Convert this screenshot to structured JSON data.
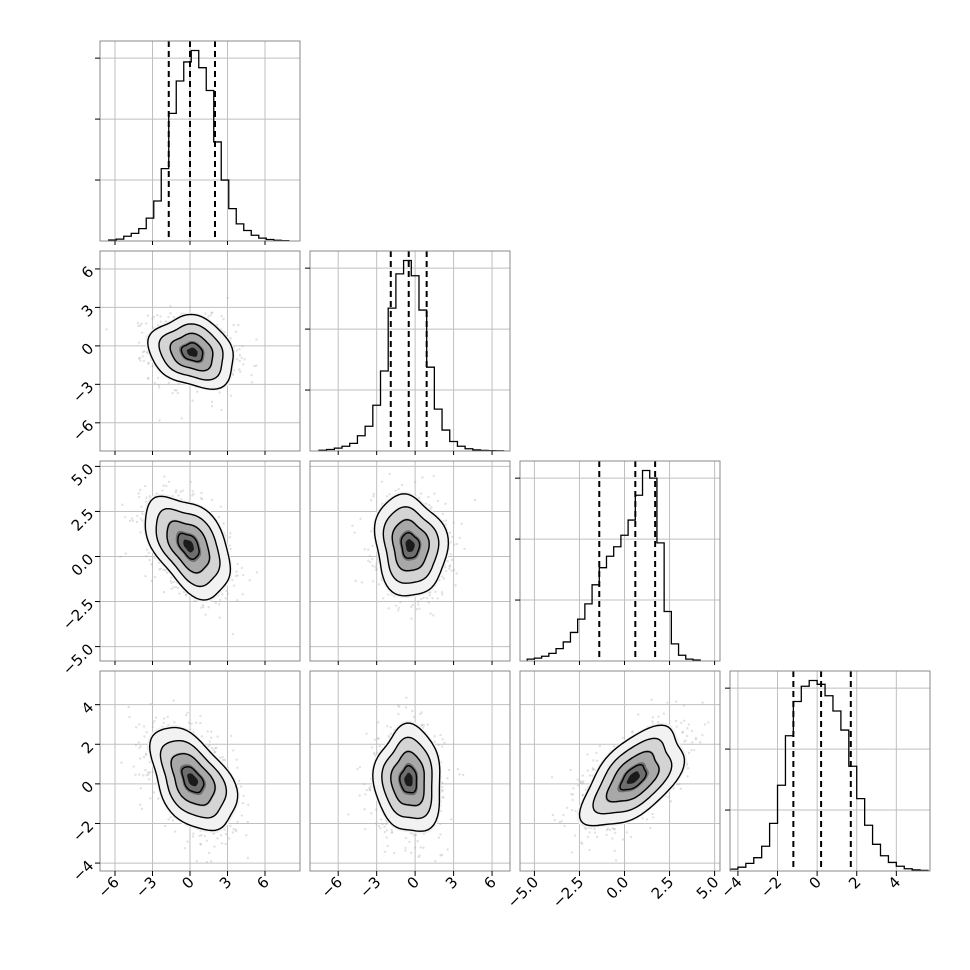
{
  "chart_data": {
    "type": "corner",
    "n_params": 4,
    "grid": true,
    "colors": {
      "frame": "#888888",
      "grid": "#bfbfbf",
      "hist": "#000000",
      "quantile": "#000000",
      "scatter": "#a9a9a9",
      "contour": "#000000",
      "density_dark": "#1a1a1a"
    },
    "params": [
      {
        "range": [
          -7.2,
          8.8
        ],
        "ticks": [
          "−6",
          "−3",
          "0",
          "3",
          "6"
        ],
        "tick_values": [
          -6,
          -3,
          0,
          3,
          6
        ],
        "quantiles": [
          -1.7,
          0.0,
          2.0
        ],
        "hist_x": [
          -6.2,
          -5.6,
          -5.0,
          -4.4,
          -3.8,
          -3.2,
          -2.6,
          -2.0,
          -1.4,
          -0.8,
          -0.2,
          0.4,
          1.0,
          1.6,
          2.2,
          2.8,
          3.4,
          4.0,
          4.6,
          5.2,
          5.8,
          6.4,
          7.0,
          7.6
        ],
        "hist": [
          0.005,
          0.01,
          0.025,
          0.04,
          0.065,
          0.12,
          0.21,
          0.38,
          0.67,
          0.84,
          0.94,
          1.0,
          0.91,
          0.79,
          0.52,
          0.32,
          0.17,
          0.09,
          0.055,
          0.03,
          0.015,
          0.008,
          0.004,
          0.002
        ]
      },
      {
        "range": [
          -8.2,
          7.4
        ],
        "ticks": [
          "−6",
          "−3",
          "0",
          "3",
          "6"
        ],
        "tick_values": [
          -6,
          -3,
          0,
          3,
          6
        ],
        "quantiles": [
          -1.9,
          -0.5,
          0.9
        ],
        "hist_x": [
          -7.2,
          -6.6,
          -6.0,
          -5.4,
          -4.8,
          -4.2,
          -3.6,
          -3.0,
          -2.4,
          -1.8,
          -1.2,
          -0.6,
          0.0,
          0.6,
          1.2,
          1.8,
          2.4,
          3.0,
          3.6,
          4.2,
          4.8,
          5.4,
          6.0,
          6.6
        ],
        "hist": [
          0.004,
          0.008,
          0.015,
          0.025,
          0.04,
          0.08,
          0.13,
          0.24,
          0.42,
          0.75,
          0.93,
          1.0,
          0.92,
          0.74,
          0.44,
          0.22,
          0.11,
          0.05,
          0.025,
          0.012,
          0.006,
          0.003,
          0.002,
          0.001
        ]
      },
      {
        "range": [
          -5.8,
          5.3
        ],
        "ticks": [
          "−5.0",
          "−2.5",
          "0.0",
          "2.5",
          "5.0"
        ],
        "tick_values": [
          -5.0,
          -2.5,
          0.0,
          2.5,
          5.0
        ],
        "quantiles": [
          -1.4,
          0.6,
          1.7
        ],
        "hist_x": [
          -5.2,
          -4.8,
          -4.4,
          -4.0,
          -3.6,
          -3.2,
          -2.8,
          -2.4,
          -2.0,
          -1.6,
          -1.2,
          -0.8,
          -0.4,
          0.0,
          0.4,
          0.8,
          1.2,
          1.6,
          2.0,
          2.4,
          2.8,
          3.2,
          3.6,
          4.0
        ],
        "hist": [
          0.01,
          0.015,
          0.025,
          0.04,
          0.065,
          0.1,
          0.15,
          0.22,
          0.3,
          0.4,
          0.49,
          0.55,
          0.6,
          0.66,
          0.74,
          0.87,
          1.0,
          0.96,
          0.62,
          0.26,
          0.09,
          0.03,
          0.01,
          0.005
        ]
      },
      {
        "range": [
          -4.4,
          5.7
        ],
        "ticks": [
          "−4",
          "−2",
          "0",
          "2",
          "4"
        ],
        "tick_values": [
          -4,
          -2,
          0,
          2,
          4
        ],
        "quantiles": [
          -1.2,
          0.2,
          1.7
        ],
        "hist_x": [
          -4.2,
          -3.8,
          -3.4,
          -3.0,
          -2.6,
          -2.2,
          -1.8,
          -1.4,
          -1.0,
          -0.6,
          -0.2,
          0.2,
          0.6,
          1.0,
          1.4,
          1.8,
          2.2,
          2.6,
          3.0,
          3.4,
          3.8,
          4.2,
          4.6,
          5.0,
          5.4
        ],
        "hist": [
          0.01,
          0.02,
          0.04,
          0.07,
          0.13,
          0.25,
          0.45,
          0.71,
          0.89,
          0.97,
          1.0,
          0.98,
          0.92,
          0.84,
          0.74,
          0.55,
          0.38,
          0.24,
          0.14,
          0.08,
          0.045,
          0.025,
          0.012,
          0.006,
          0.003
        ]
      }
    ],
    "pairs": [
      {
        "row": 1,
        "col": 0,
        "mean": [
          0.2,
          -0.5
        ],
        "sd": [
          1.7,
          1.4
        ],
        "rho": -0.2
      },
      {
        "row": 2,
        "col": 0,
        "mean": [
          -0.1,
          0.6
        ],
        "sd": [
          1.7,
          1.4
        ],
        "rho": -0.45
      },
      {
        "row": 2,
        "col": 1,
        "mean": [
          -0.4,
          0.6
        ],
        "sd": [
          1.4,
          1.4
        ],
        "rho": -0.1
      },
      {
        "row": 3,
        "col": 0,
        "mean": [
          0.2,
          0.2
        ],
        "sd": [
          1.7,
          1.3
        ],
        "rho": -0.45
      },
      {
        "row": 3,
        "col": 1,
        "mean": [
          -0.5,
          0.2
        ],
        "sd": [
          1.3,
          1.35
        ],
        "rho": -0.05
      },
      {
        "row": 3,
        "col": 2,
        "mean": [
          0.5,
          0.3
        ],
        "sd": [
          1.4,
          1.25
        ],
        "rho": 0.55
      }
    ],
    "contour_levels_sigma": [
      0.5,
      1.0,
      1.5,
      2.0
    ]
  }
}
